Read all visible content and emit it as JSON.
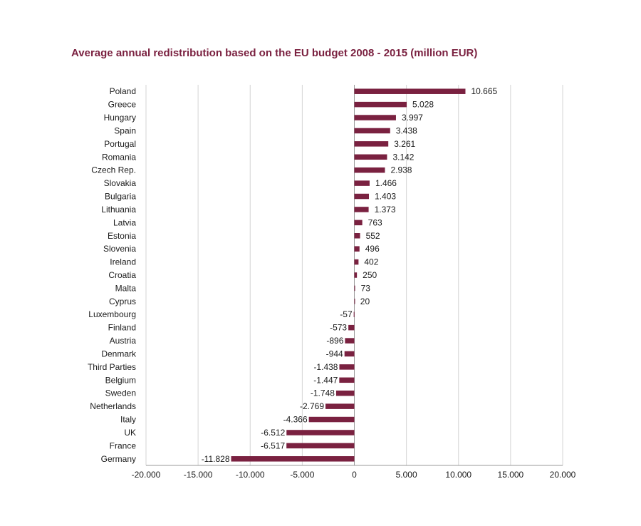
{
  "chart_data": {
    "type": "bar",
    "orientation": "horizontal",
    "title": "Average annual redistribution based on the EU budget 2008 - 2015 (million EUR)",
    "xlabel": "",
    "ylabel": "",
    "xlim": [
      -20000,
      20000
    ],
    "grid": true,
    "bar_color": "#7a2140",
    "categories": [
      "Poland",
      "Greece",
      "Hungary",
      "Spain",
      "Portugal",
      "Romania",
      "Czech Rep.",
      "Slovakia",
      "Bulgaria",
      "Lithuania",
      "Latvia",
      "Estonia",
      "Slovenia",
      "Ireland",
      "Croatia",
      "Malta",
      "Cyprus",
      "Luxembourg",
      "Finland",
      "Austria",
      "Denmark",
      "Third Parties",
      "Belgium",
      "Sweden",
      "Netherlands",
      "Italy",
      "UK",
      "France",
      "Germany"
    ],
    "values": [
      10665,
      5028,
      3997,
      3438,
      3261,
      3142,
      2938,
      1466,
      1403,
      1373,
      763,
      552,
      496,
      402,
      250,
      73,
      20,
      -57,
      -573,
      -896,
      -944,
      -1438,
      -1447,
      -1748,
      -2769,
      -4366,
      -6512,
      -6517,
      -11828
    ],
    "value_labels": [
      "10.665",
      "5.028",
      "3.997",
      "3.438",
      "3.261",
      "3.142",
      "2.938",
      "1.466",
      "1.403",
      "1.373",
      "763",
      "552",
      "496",
      "402",
      "250",
      "73",
      "20",
      "-57",
      "-573",
      "-896",
      "-944",
      "-1.438",
      "-1.447",
      "-1.748",
      "-2.769",
      "-4.366",
      "-6.512",
      "-6.517",
      "-11.828"
    ],
    "x_ticks": [
      -20000,
      -15000,
      -10000,
      -5000,
      0,
      5000,
      10000,
      15000,
      20000
    ],
    "x_tick_labels": [
      "-20.000",
      "-15.000",
      "-10.000",
      "-5.000",
      "0",
      "5.000",
      "10.000",
      "15.000",
      "20.000"
    ]
  }
}
